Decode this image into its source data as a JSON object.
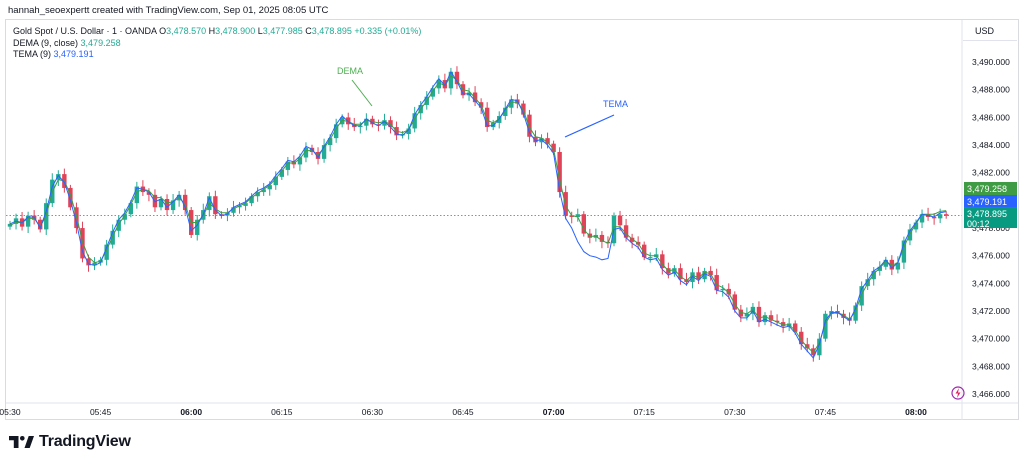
{
  "header": {
    "credit": "hannah_seoexpertt created with TradingView.com, Sep 01, 2025 08:05 UTC"
  },
  "legend": {
    "instrument": "Gold Spot / U.S. Dollar · 1 · OANDA",
    "o_label": "O",
    "o_value": "3,478.570",
    "h_label": "H",
    "h_value": "3,478.900",
    "l_label": "L",
    "l_value": "3,477.985",
    "c_label": "C",
    "c_value": "3,478.895",
    "change": "+0.335 (+0.01%)",
    "dema_label": "DEMA (9, close)",
    "dema_value": "3,479.258",
    "tema_label": "TEMA (9)",
    "tema_value": "3,479.191"
  },
  "price_axis": {
    "currency": "USD",
    "dema_tag": "3,479.258",
    "tema_tag": "3,479.191",
    "last_tag": "3,478.895",
    "countdown": "00:12"
  },
  "annotations": {
    "dema": "DEMA",
    "tema": "TEMA"
  },
  "brand": {
    "name": "TradingView"
  },
  "colors": {
    "up": "#22ab94",
    "down": "#e04258",
    "dema": "#3f9b44",
    "tema": "#2962ff",
    "annotation_dema": "#4caf50",
    "annotation_tema": "#2962ff",
    "last_price_line": "#089981"
  },
  "chart_data": {
    "type": "candlestick",
    "title": "Gold Spot / U.S. Dollar · 1 · OANDA",
    "ylim": [
      3465.5,
      3490.5
    ],
    "y_ticks": [
      "3,466.000",
      "3,468.000",
      "3,470.000",
      "3,472.000",
      "3,474.000",
      "3,476.000",
      "3,478.000",
      "3,480.000",
      "3,482.000",
      "3,484.000",
      "3,486.000",
      "3,488.000",
      "3,490.000"
    ],
    "x_ticks": [
      {
        "label": "05:30",
        "i": 0,
        "bold": false
      },
      {
        "label": "05:45",
        "i": 15,
        "bold": false
      },
      {
        "label": "06:00",
        "i": 30,
        "bold": true
      },
      {
        "label": "06:15",
        "i": 45,
        "bold": false
      },
      {
        "label": "06:30",
        "i": 60,
        "bold": false
      },
      {
        "label": "06:45",
        "i": 75,
        "bold": false
      },
      {
        "label": "07:00",
        "i": 90,
        "bold": true
      },
      {
        "label": "07:15",
        "i": 105,
        "bold": false
      },
      {
        "label": "07:30",
        "i": 120,
        "bold": false
      },
      {
        "label": "07:45",
        "i": 135,
        "bold": false
      },
      {
        "label": "08:00",
        "i": 150,
        "bold": true
      }
    ],
    "closes": [
      3478.3,
      3478.7,
      3478.1,
      3478.9,
      3478.6,
      3477.9,
      3479.8,
      3481.5,
      3481.9,
      3480.9,
      3479.5,
      3478.0,
      3475.8,
      3475.3,
      3475.5,
      3475.7,
      3476.8,
      3477.8,
      3478.6,
      3479.0,
      3479.8,
      3481.0,
      3480.6,
      3480.4,
      3479.5,
      3480.1,
      3479.3,
      3480.0,
      3480.4,
      3479.3,
      3477.5,
      3478.6,
      3479.3,
      3480.3,
      3479.0,
      3478.9,
      3479.1,
      3479.5,
      3479.6,
      3479.8,
      3480.3,
      3480.6,
      3480.8,
      3481.1,
      3481.7,
      3482.2,
      3482.8,
      3482.6,
      3483.1,
      3483.8,
      3483.5,
      3483.0,
      3484.0,
      3484.5,
      3485.5,
      3486.0,
      3485.5,
      3485.3,
      3485.4,
      3485.9,
      3485.5,
      3485.4,
      3485.8,
      3485.3,
      3484.7,
      3484.8,
      3485.2,
      3486.3,
      3486.9,
      3487.5,
      3488.1,
      3488.7,
      3488.1,
      3489.3,
      3488.4,
      3487.6,
      3487.8,
      3487.1,
      3486.7,
      3485.3,
      3485.6,
      3486.1,
      3486.7,
      3487.3,
      3487.0,
      3486.2,
      3484.6,
      3484.2,
      3484.5,
      3484.1,
      3483.5,
      3480.6,
      3478.9,
      3478.8,
      3479.0,
      3477.6,
      3477.3,
      3477.5,
      3477.0,
      3476.9,
      3478.9,
      3478.2,
      3477.3,
      3477.0,
      3476.8,
      3475.9,
      3475.9,
      3476.1,
      3475.1,
      3474.7,
      3475.1,
      3474.3,
      3474.1,
      3474.8,
      3474.3,
      3474.9,
      3474.6,
      3473.5,
      3473.6,
      3473.2,
      3472.1,
      3471.6,
      3471.8,
      3472.3,
      3471.2,
      3471.7,
      3471.3,
      3471.2,
      3470.9,
      3471.1,
      3470.5,
      3469.6,
      3469.3,
      3468.8,
      3470.0,
      3471.8,
      3472.0,
      3471.8,
      3471.5,
      3471.3,
      3472.4,
      3473.8,
      3474.3,
      3474.9,
      3475.2,
      3475.7,
      3475.0,
      3475.5,
      3477.1,
      3477.9,
      3478.4,
      3479.0,
      3478.8,
      3478.7,
      3479.0,
      3478.895
    ],
    "dema": [
      3478.2,
      3478.4,
      3478.4,
      3478.7,
      3478.7,
      3478.1,
      3478.9,
      3480.6,
      3481.5,
      3481.4,
      3480.4,
      3478.9,
      3477.0,
      3475.9,
      3475.5,
      3475.6,
      3476.4,
      3477.4,
      3478.3,
      3478.9,
      3479.7,
      3480.6,
      3480.8,
      3480.7,
      3480.2,
      3480.2,
      3479.8,
      3479.9,
      3480.2,
      3479.7,
      3478.4,
      3478.4,
      3478.9,
      3479.8,
      3479.4,
      3479.1,
      3479.1,
      3479.4,
      3479.6,
      3479.8,
      3480.2,
      3480.5,
      3480.8,
      3481.1,
      3481.6,
      3482.1,
      3482.7,
      3482.7,
      3483.0,
      3483.6,
      3483.6,
      3483.3,
      3483.8,
      3484.4,
      3485.2,
      3485.8,
      3485.7,
      3485.5,
      3485.5,
      3485.8,
      3485.7,
      3485.6,
      3485.7,
      3485.5,
      3485.0,
      3484.9,
      3485.1,
      3485.9,
      3486.6,
      3487.2,
      3487.9,
      3488.5,
      3488.3,
      3489.0,
      3488.7,
      3488.0,
      3487.9,
      3487.4,
      3486.9,
      3485.8,
      3485.6,
      3485.9,
      3486.5,
      3487.1,
      3487.1,
      3486.5,
      3485.3,
      3484.6,
      3484.5,
      3484.2,
      3483.7,
      3481.5,
      3479.6,
      3478.9,
      3478.8,
      3477.9,
      3477.4,
      3477.4,
      3477.1,
      3476.9,
      3478.1,
      3478.1,
      3477.6,
      3477.2,
      3476.9,
      3476.2,
      3476.0,
      3476.0,
      3475.4,
      3474.9,
      3475.0,
      3474.5,
      3474.2,
      3474.6,
      3474.4,
      3474.8,
      3474.7,
      3473.9,
      3473.7,
      3473.3,
      3472.5,
      3471.9,
      3471.8,
      3472.1,
      3471.5,
      3471.6,
      3471.4,
      3471.2,
      3471.0,
      3471.0,
      3470.6,
      3469.9,
      3469.4,
      3469.0,
      3469.7,
      3471.1,
      3471.8,
      3471.9,
      3471.7,
      3471.4,
      3472.0,
      3473.2,
      3474.0,
      3474.7,
      3475.1,
      3475.6,
      3475.3,
      3475.5,
      3476.6,
      3477.6,
      3478.3,
      3479.0,
      3479.0,
      3479.0,
      3479.2,
      3479.258
    ],
    "tema": [
      3478.3,
      3478.5,
      3478.4,
      3478.8,
      3478.8,
      3478.0,
      3479.2,
      3481.0,
      3481.8,
      3481.3,
      3480.0,
      3478.4,
      3476.3,
      3475.4,
      3475.3,
      3475.5,
      3476.6,
      3477.7,
      3478.6,
      3479.1,
      3479.9,
      3480.9,
      3480.8,
      3480.6,
      3479.9,
      3480.1,
      3479.5,
      3479.9,
      3480.4,
      3479.5,
      3477.8,
      3478.2,
      3479.0,
      3480.2,
      3479.3,
      3478.9,
      3479.0,
      3479.5,
      3479.7,
      3479.9,
      3480.3,
      3480.7,
      3480.9,
      3481.2,
      3481.8,
      3482.3,
      3482.9,
      3482.8,
      3483.2,
      3483.9,
      3483.7,
      3483.1,
      3483.9,
      3484.6,
      3485.5,
      3486.1,
      3485.7,
      3485.4,
      3485.4,
      3485.9,
      3485.6,
      3485.4,
      3485.7,
      3485.3,
      3484.8,
      3484.7,
      3485.1,
      3486.2,
      3486.9,
      3487.5,
      3488.2,
      3488.8,
      3488.3,
      3489.3,
      3488.6,
      3487.7,
      3487.7,
      3487.2,
      3486.7,
      3485.4,
      3485.4,
      3485.9,
      3486.6,
      3487.3,
      3487.2,
      3486.3,
      3484.9,
      3484.3,
      3484.4,
      3484.0,
      3483.4,
      3480.7,
      3478.7,
      3478.0,
      3477.0,
      3476.3,
      3476.0,
      3475.9,
      3475.7,
      3475.8,
      3477.9,
      3478.0,
      3477.3,
      3476.9,
      3476.6,
      3475.9,
      3475.7,
      3475.8,
      3475.0,
      3474.6,
      3474.8,
      3474.2,
      3473.9,
      3474.5,
      3474.2,
      3474.7,
      3474.5,
      3473.5,
      3473.4,
      3473.0,
      3472.0,
      3471.5,
      3471.5,
      3472.0,
      3471.2,
      3471.4,
      3471.2,
      3471.0,
      3470.8,
      3470.9,
      3470.4,
      3469.6,
      3469.1,
      3468.6,
      3469.6,
      3471.3,
      3471.9,
      3471.9,
      3471.6,
      3471.3,
      3472.2,
      3473.6,
      3474.2,
      3474.9,
      3475.2,
      3475.7,
      3475.1,
      3475.5,
      3476.9,
      3477.8,
      3478.4,
      3479.0,
      3478.9,
      3478.8,
      3479.1,
      3479.191
    ],
    "last_price": 3478.895,
    "dema_last": 3479.258,
    "tema_last": 3479.191
  }
}
